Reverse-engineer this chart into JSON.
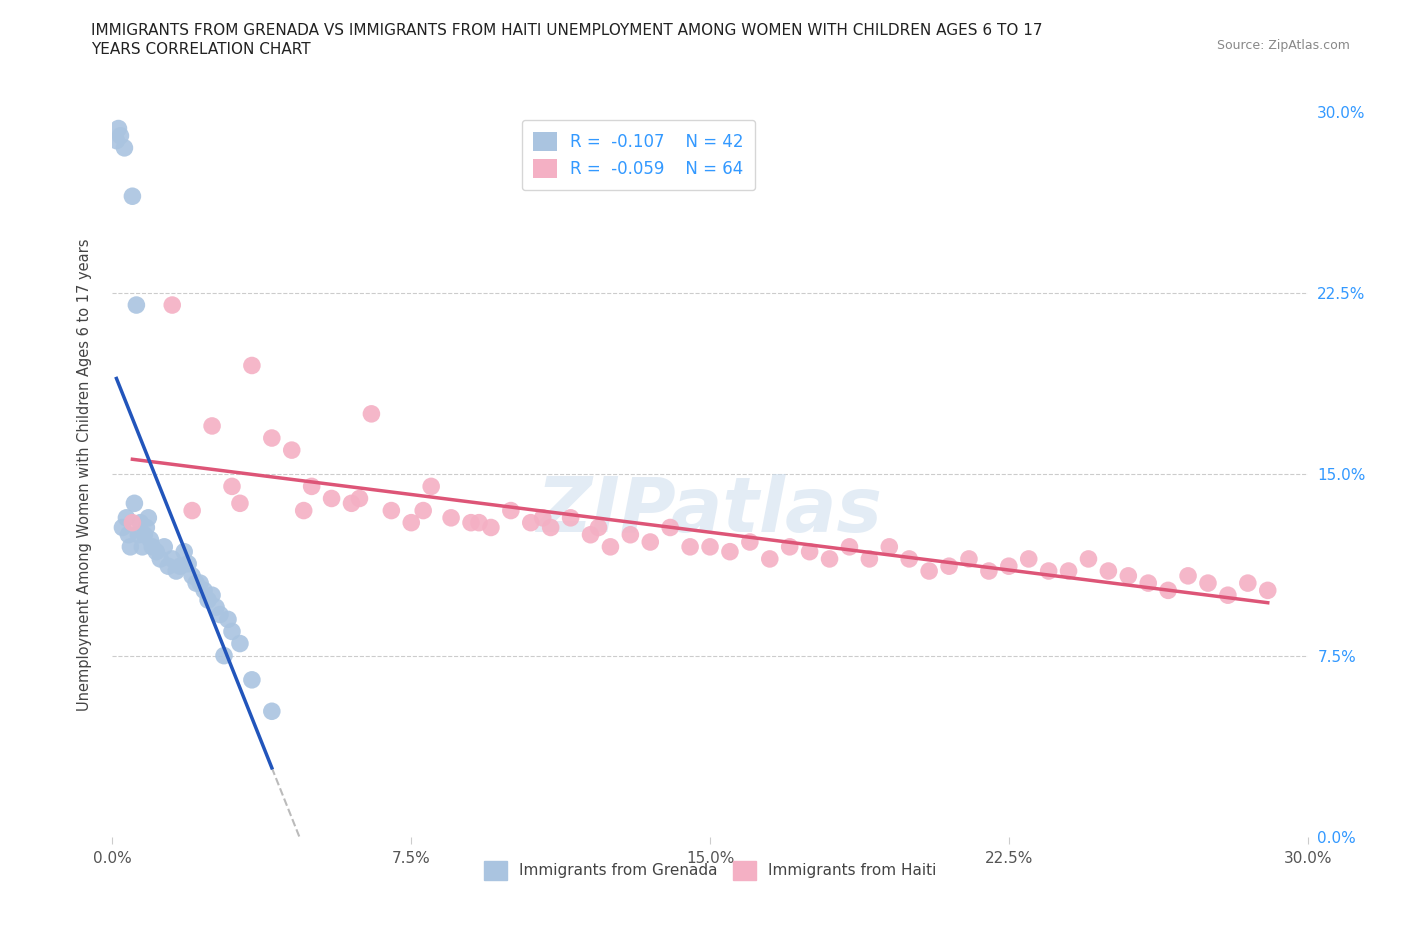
{
  "title": "IMMIGRANTS FROM GRENADA VS IMMIGRANTS FROM HAITI UNEMPLOYMENT AMONG WOMEN WITH CHILDREN AGES 6 TO 17\nYEARS CORRELATION CHART",
  "source": "Source: ZipAtlas.com",
  "ylabel": "Unemployment Among Women with Children Ages 6 to 17 years",
  "xlim": [
    0.0,
    30.0
  ],
  "ylim": [
    0.0,
    30.0
  ],
  "tick_vals": [
    0.0,
    7.5,
    15.0,
    22.5,
    30.0
  ],
  "legend_r1": "-0.107",
  "legend_n1": "42",
  "legend_r2": "-0.059",
  "legend_n2": "64",
  "color_grenada": "#aac4e0",
  "color_haiti": "#f4b0c4",
  "line_grenada": "#2255bb",
  "line_haiti": "#dd5577",
  "line_dashed_color": "#bbbbbb",
  "background_color": "#ffffff",
  "grenada_x": [
    0.1,
    0.15,
    0.2,
    0.25,
    0.3,
    0.35,
    0.4,
    0.45,
    0.5,
    0.55,
    0.6,
    0.65,
    0.7,
    0.75,
    0.8,
    0.85,
    0.9,
    0.95,
    1.0,
    1.1,
    1.2,
    1.3,
    1.4,
    1.5,
    1.6,
    1.7,
    1.8,
    1.9,
    2.0,
    2.1,
    2.2,
    2.3,
    2.4,
    2.5,
    2.6,
    2.7,
    2.8,
    2.9,
    3.0,
    3.2,
    3.5,
    4.0
  ],
  "grenada_y": [
    28.8,
    29.3,
    29.0,
    12.8,
    28.5,
    13.2,
    12.5,
    12.0,
    26.5,
    13.8,
    22.0,
    12.5,
    13.0,
    12.0,
    12.5,
    12.8,
    13.2,
    12.3,
    12.0,
    11.8,
    11.5,
    12.0,
    11.2,
    11.5,
    11.0,
    11.2,
    11.8,
    11.3,
    10.8,
    10.5,
    10.5,
    10.2,
    9.8,
    10.0,
    9.5,
    9.2,
    7.5,
    9.0,
    8.5,
    8.0,
    6.5,
    5.2
  ],
  "haiti_x": [
    0.5,
    1.5,
    2.0,
    2.5,
    3.0,
    3.5,
    4.0,
    4.5,
    5.0,
    5.5,
    6.0,
    6.5,
    7.0,
    7.5,
    8.0,
    8.5,
    9.0,
    9.5,
    10.0,
    10.5,
    11.0,
    11.5,
    12.0,
    12.5,
    13.0,
    13.5,
    14.0,
    14.5,
    15.0,
    15.5,
    16.0,
    16.5,
    17.0,
    17.5,
    18.0,
    18.5,
    19.0,
    19.5,
    20.0,
    20.5,
    21.0,
    21.5,
    22.0,
    22.5,
    23.0,
    23.5,
    24.0,
    24.5,
    25.0,
    25.5,
    26.0,
    26.5,
    27.0,
    27.5,
    28.0,
    28.5,
    3.2,
    4.8,
    6.2,
    7.8,
    9.2,
    10.8,
    12.2,
    29.0
  ],
  "haiti_y": [
    13.0,
    22.0,
    13.5,
    17.0,
    14.5,
    19.5,
    16.5,
    16.0,
    14.5,
    14.0,
    13.8,
    17.5,
    13.5,
    13.0,
    14.5,
    13.2,
    13.0,
    12.8,
    13.5,
    13.0,
    12.8,
    13.2,
    12.5,
    12.0,
    12.5,
    12.2,
    12.8,
    12.0,
    12.0,
    11.8,
    12.2,
    11.5,
    12.0,
    11.8,
    11.5,
    12.0,
    11.5,
    12.0,
    11.5,
    11.0,
    11.2,
    11.5,
    11.0,
    11.2,
    11.5,
    11.0,
    11.0,
    11.5,
    11.0,
    10.8,
    10.5,
    10.2,
    10.8,
    10.5,
    10.0,
    10.5,
    13.8,
    13.5,
    14.0,
    13.5,
    13.0,
    13.2,
    12.8,
    10.2
  ]
}
